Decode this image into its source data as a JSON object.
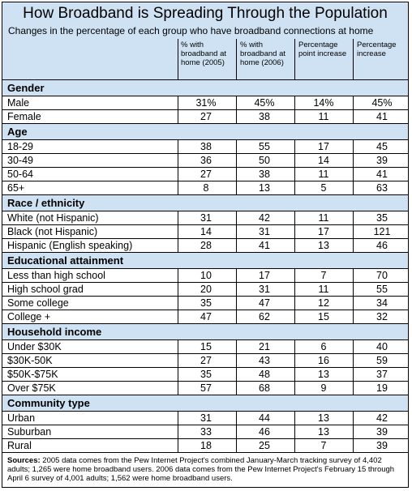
{
  "title": "How Broadband is Spreading Through the Population",
  "subtitle": "Changes in the percentage of each group who have broadband connections at home",
  "columns": [
    "% with broadband at home (2005)",
    "% with broadband at home (2006)",
    "Percentage point increase",
    "Percentage increase"
  ],
  "sources_label": "Sources:",
  "sources_text": "2005 data comes from the Pew Internet Project's combined January-March tracking survey of 4,402 adults; 1,265 were home broadband users. 2006 data comes from the Pew Internet Project's February 15 through April 6 survey of 4,001 adults; 1,562 were home broadband users.",
  "chart_data": {
    "type": "table",
    "title": "How Broadband is Spreading Through the Population",
    "subtitle": "Changes in the percentage of each group who have broadband connections at home",
    "columns": [
      "% with broadband at home (2005)",
      "% with broadband at home (2006)",
      "Percentage point increase",
      "Percentage increase"
    ],
    "sections": [
      {
        "name": "Gender",
        "rows": [
          {
            "label": "Male",
            "values": [
              "31%",
              "45%",
              "14%",
              "45%"
            ]
          },
          {
            "label": "Female",
            "values": [
              "27",
              "38",
              "11",
              "41"
            ]
          }
        ]
      },
      {
        "name": "Age",
        "rows": [
          {
            "label": "18-29",
            "values": [
              "38",
              "55",
              "17",
              "45"
            ]
          },
          {
            "label": "30-49",
            "values": [
              "36",
              "50",
              "14",
              "39"
            ]
          },
          {
            "label": "50-64",
            "values": [
              "27",
              "38",
              "11",
              "41"
            ]
          },
          {
            "label": "65+",
            "values": [
              "8",
              "13",
              "5",
              "63"
            ]
          }
        ]
      },
      {
        "name": "Race / ethnicity",
        "rows": [
          {
            "label": "White (not Hispanic)",
            "values": [
              "31",
              "42",
              "11",
              "35"
            ]
          },
          {
            "label": "Black (not Hispanic)",
            "values": [
              "14",
              "31",
              "17",
              "121"
            ]
          },
          {
            "label": "Hispanic (English speaking)",
            "values": [
              "28",
              "41",
              "13",
              "46"
            ]
          }
        ]
      },
      {
        "name": "Educational attainment",
        "rows": [
          {
            "label": "Less than high school",
            "values": [
              "10",
              "17",
              "7",
              "70"
            ]
          },
          {
            "label": "High school grad",
            "values": [
              "20",
              "31",
              "11",
              "55"
            ]
          },
          {
            "label": "Some college",
            "values": [
              "35",
              "47",
              "12",
              "34"
            ]
          },
          {
            "label": "College +",
            "values": [
              "47",
              "62",
              "15",
              "32"
            ]
          }
        ]
      },
      {
        "name": "Household income",
        "rows": [
          {
            "label": "Under $30K",
            "values": [
              "15",
              "21",
              "6",
              "40"
            ]
          },
          {
            "label": "$30K-50K",
            "values": [
              "27",
              "43",
              "16",
              "59"
            ]
          },
          {
            "label": "$50K-$75K",
            "values": [
              "35",
              "48",
              "13",
              "37"
            ]
          },
          {
            "label": "Over $75K",
            "values": [
              "57",
              "68",
              "9",
              "19"
            ]
          }
        ]
      },
      {
        "name": "Community type",
        "rows": [
          {
            "label": "Urban",
            "values": [
              "31",
              "44",
              "13",
              "42"
            ]
          },
          {
            "label": "Suburban",
            "values": [
              "33",
              "46",
              "13",
              "39"
            ]
          },
          {
            "label": "Rural",
            "values": [
              "18",
              "25",
              "7",
              "39"
            ]
          }
        ]
      }
    ]
  }
}
